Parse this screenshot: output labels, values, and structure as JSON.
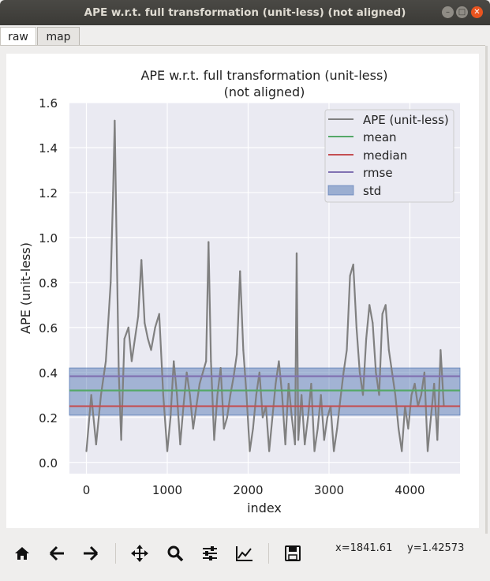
{
  "window": {
    "title": "APE w.r.t. full transformation (unit-less) (not aligned)"
  },
  "tabs": [
    {
      "label": "raw",
      "active": true
    },
    {
      "label": "map",
      "active": false
    }
  ],
  "toolbar": {
    "buttons": [
      "home-icon",
      "back-icon",
      "forward-icon",
      "pan-icon",
      "zoom-icon",
      "configure-subplots-icon",
      "edit-axis-icon",
      "save-icon"
    ],
    "x_readout": "x=1841.61",
    "y_readout": "y=1.42573"
  },
  "chart_data": {
    "type": "line",
    "title": "APE w.r.t. full transformation (unit-less)",
    "subtitle": "(not aligned)",
    "xlabel": "index",
    "ylabel": "APE (unit-less)",
    "xlim": [
      -210,
      4620
    ],
    "ylim": [
      -0.05,
      1.6
    ],
    "xticks": [
      0,
      1000,
      2000,
      3000,
      4000
    ],
    "yticks": [
      0.0,
      0.2,
      0.4,
      0.6,
      0.8,
      1.0,
      1.2,
      1.4,
      1.6
    ],
    "grid": true,
    "legend_position": "top-right",
    "series": [
      {
        "name": "APE (unit-less)",
        "color": "#808080",
        "x": [
          0,
          60,
          120,
          180,
          240,
          300,
          330,
          350,
          370,
          400,
          430,
          470,
          520,
          560,
          600,
          640,
          680,
          720,
          760,
          800,
          850,
          900,
          950,
          1000,
          1040,
          1080,
          1120,
          1160,
          1200,
          1240,
          1280,
          1320,
          1360,
          1400,
          1440,
          1480,
          1510,
          1540,
          1580,
          1620,
          1660,
          1700,
          1740,
          1780,
          1820,
          1860,
          1900,
          1940,
          1980,
          2020,
          2060,
          2100,
          2140,
          2180,
          2220,
          2260,
          2300,
          2340,
          2380,
          2420,
          2460,
          2500,
          2540,
          2580,
          2600,
          2620,
          2660,
          2700,
          2740,
          2780,
          2820,
          2860,
          2900,
          2940,
          2980,
          3020,
          3060,
          3100,
          3140,
          3180,
          3220,
          3260,
          3300,
          3340,
          3380,
          3420,
          3460,
          3500,
          3540,
          3580,
          3620,
          3660,
          3700,
          3740,
          3780,
          3820,
          3860,
          3900,
          3940,
          3980,
          4020,
          4060,
          4100,
          4140,
          4180,
          4220,
          4260,
          4300,
          4340,
          4380,
          4420
        ],
        "y": [
          0.05,
          0.3,
          0.08,
          0.3,
          0.45,
          0.8,
          1.2,
          1.52,
          1.05,
          0.4,
          0.1,
          0.55,
          0.6,
          0.45,
          0.55,
          0.65,
          0.9,
          0.62,
          0.55,
          0.5,
          0.6,
          0.66,
          0.3,
          0.05,
          0.2,
          0.45,
          0.3,
          0.08,
          0.25,
          0.4,
          0.3,
          0.15,
          0.25,
          0.35,
          0.4,
          0.45,
          0.98,
          0.45,
          0.1,
          0.3,
          0.42,
          0.15,
          0.2,
          0.3,
          0.38,
          0.48,
          0.85,
          0.5,
          0.3,
          0.05,
          0.15,
          0.3,
          0.4,
          0.2,
          0.25,
          0.05,
          0.2,
          0.35,
          0.45,
          0.3,
          0.08,
          0.35,
          0.2,
          0.08,
          0.93,
          0.1,
          0.3,
          0.08,
          0.2,
          0.35,
          0.05,
          0.15,
          0.3,
          0.1,
          0.2,
          0.25,
          0.05,
          0.15,
          0.28,
          0.4,
          0.5,
          0.83,
          0.88,
          0.6,
          0.4,
          0.3,
          0.55,
          0.7,
          0.62,
          0.4,
          0.3,
          0.66,
          0.7,
          0.5,
          0.4,
          0.3,
          0.15,
          0.05,
          0.25,
          0.15,
          0.3,
          0.35,
          0.25,
          0.3,
          0.4,
          0.05,
          0.2,
          0.35,
          0.1,
          0.5,
          0.25
        ]
      },
      {
        "name": "mean",
        "color": "#55a868",
        "value": 0.32
      },
      {
        "name": "median",
        "color": "#c44e52",
        "value": 0.25
      },
      {
        "name": "rmse",
        "color": "#8172b2",
        "value": 0.383
      },
      {
        "name": "std",
        "color": "#4c72b0",
        "range": [
          0.21,
          0.42
        ]
      }
    ]
  }
}
